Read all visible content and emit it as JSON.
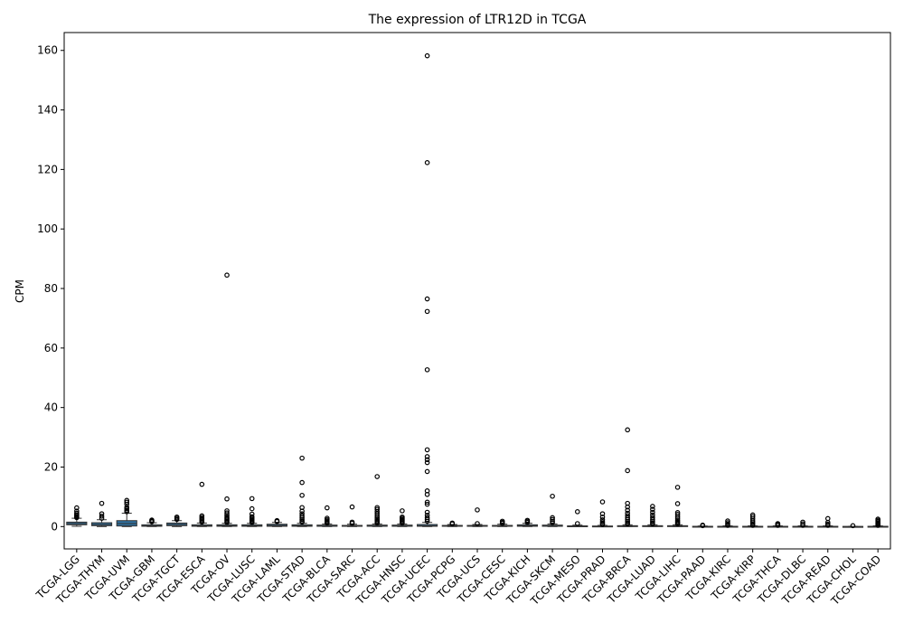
{
  "chart_data": {
    "type": "box",
    "title": "The expression of LTR12D in TCGA",
    "xlabel": "",
    "ylabel": "CPM",
    "ylim": [
      -7.5,
      166
    ],
    "yticks": [
      0,
      20,
      40,
      60,
      80,
      100,
      120,
      140,
      160
    ],
    "grid": false,
    "box_color": "#2e6f9e",
    "categories": [
      "TCGA-LGG",
      "TCGA-THYM",
      "TCGA-UVM",
      "TCGA-GBM",
      "TCGA-TGCT",
      "TCGA-ESCA",
      "TCGA-OV",
      "TCGA-LUSC",
      "TCGA-LAML",
      "TCGA-STAD",
      "TCGA-BLCA",
      "TCGA-SARC",
      "TCGA-ACC",
      "TCGA-HNSC",
      "TCGA-UCEC",
      "TCGA-PCPG",
      "TCGA-UCS",
      "TCGA-CESC",
      "TCGA-KICH",
      "TCGA-SKCM",
      "TCGA-MESO",
      "TCGA-PRAD",
      "TCGA-BRCA",
      "TCGA-LUAD",
      "TCGA-LIHC",
      "TCGA-PAAD",
      "TCGA-KIRC",
      "TCGA-KIRP",
      "TCGA-THCA",
      "TCGA-DLBC",
      "TCGA-READ",
      "TCGA-CHOL",
      "TCGA-COAD"
    ],
    "boxes": [
      {
        "min": 0.1,
        "q1": 0.6,
        "median": 1.0,
        "q3": 1.5,
        "max": 2.8,
        "outliers": [
          3.0,
          3.3,
          3.7,
          4.0,
          4.5,
          5.2,
          6.3
        ]
      },
      {
        "min": 0.0,
        "q1": 0.3,
        "median": 0.7,
        "q3": 1.3,
        "max": 2.3,
        "outliers": [
          2.8,
          3.5,
          4.3,
          7.8
        ]
      },
      {
        "min": 0.0,
        "q1": 0.2,
        "median": 1.0,
        "q3": 2.0,
        "max": 4.5,
        "outliers": [
          5.0,
          5.5,
          6.0,
          6.5,
          7.5,
          8.2,
          8.8
        ]
      },
      {
        "min": 0.0,
        "q1": 0.1,
        "median": 0.3,
        "q3": 0.6,
        "max": 1.3,
        "outliers": [
          1.6,
          1.9,
          2.2
        ]
      },
      {
        "min": 0.0,
        "q1": 0.3,
        "median": 0.7,
        "q3": 1.2,
        "max": 2.0,
        "outliers": [
          2.4,
          2.8,
          3.2
        ]
      },
      {
        "min": 0.0,
        "q1": 0.1,
        "median": 0.3,
        "q3": 0.6,
        "max": 1.2,
        "outliers": [
          1.5,
          1.9,
          2.3,
          2.7,
          3.1,
          3.6,
          14.2
        ]
      },
      {
        "min": 0.0,
        "q1": 0.1,
        "median": 0.3,
        "q3": 0.6,
        "max": 1.1,
        "outliers": [
          1.4,
          1.8,
          2.2,
          2.6,
          3.0,
          3.5,
          4.0,
          4.6,
          5.3,
          9.3,
          84.5
        ]
      },
      {
        "min": 0.0,
        "q1": 0.1,
        "median": 0.3,
        "q3": 0.6,
        "max": 1.1,
        "outliers": [
          1.4,
          1.7,
          2.0,
          2.4,
          2.8,
          3.3,
          4.2,
          6.0,
          9.4
        ]
      },
      {
        "min": 0.0,
        "q1": 0.1,
        "median": 0.4,
        "q3": 0.8,
        "max": 1.4,
        "outliers": [
          1.7,
          2.0
        ]
      },
      {
        "min": 0.0,
        "q1": 0.1,
        "median": 0.3,
        "q3": 0.6,
        "max": 1.1,
        "outliers": [
          1.5,
          1.9,
          2.4,
          3.0,
          3.6,
          4.3,
          5.2,
          6.4,
          10.5,
          14.8,
          23.0
        ]
      },
      {
        "min": 0.0,
        "q1": 0.1,
        "median": 0.2,
        "q3": 0.5,
        "max": 0.9,
        "outliers": [
          1.2,
          1.5,
          1.9,
          2.3,
          2.8,
          6.3
        ]
      },
      {
        "min": 0.0,
        "q1": 0.1,
        "median": 0.2,
        "q3": 0.4,
        "max": 0.8,
        "outliers": [
          1.1,
          1.5,
          6.6
        ]
      },
      {
        "min": 0.0,
        "q1": 0.1,
        "median": 0.2,
        "q3": 0.5,
        "max": 0.9,
        "outliers": [
          1.2,
          1.6,
          2.0,
          2.5,
          3.0,
          3.6,
          4.3,
          5.0,
          5.8,
          6.4,
          16.8
        ]
      },
      {
        "min": 0.0,
        "q1": 0.1,
        "median": 0.2,
        "q3": 0.5,
        "max": 0.9,
        "outliers": [
          1.2,
          1.6,
          2.0,
          2.4,
          2.8,
          3.2,
          5.3
        ]
      },
      {
        "min": 0.0,
        "q1": 0.1,
        "median": 0.3,
        "q3": 0.7,
        "max": 1.4,
        "outliers": [
          1.8,
          2.4,
          3.0,
          3.8,
          4.8,
          7.5,
          8.2,
          10.8,
          12.0,
          18.5,
          21.5,
          22.5,
          23.5,
          25.8,
          52.7,
          72.3,
          76.5,
          122.3,
          158.2
        ]
      },
      {
        "min": 0.0,
        "q1": 0.1,
        "median": 0.2,
        "q3": 0.4,
        "max": 0.7,
        "outliers": [
          0.9,
          1.2
        ]
      },
      {
        "min": 0.0,
        "q1": 0.1,
        "median": 0.2,
        "q3": 0.4,
        "max": 0.7,
        "outliers": [
          1.0,
          5.6
        ]
      },
      {
        "min": 0.0,
        "q1": 0.1,
        "median": 0.2,
        "q3": 0.4,
        "max": 0.8,
        "outliers": [
          1.1,
          1.4,
          1.8
        ]
      },
      {
        "min": 0.0,
        "q1": 0.1,
        "median": 0.3,
        "q3": 0.6,
        "max": 1.1,
        "outliers": [
          1.4,
          1.8,
          2.1
        ]
      },
      {
        "min": 0.0,
        "q1": 0.1,
        "median": 0.2,
        "q3": 0.5,
        "max": 0.9,
        "outliers": [
          1.3,
          1.8,
          2.4,
          3.0,
          10.2
        ]
      },
      {
        "min": 0.0,
        "q1": 0.05,
        "median": 0.1,
        "q3": 0.25,
        "max": 0.5,
        "outliers": [
          1.0,
          5.0
        ]
      },
      {
        "min": 0.0,
        "q1": 0.05,
        "median": 0.1,
        "q3": 0.2,
        "max": 0.4,
        "outliers": [
          0.7,
          1.1,
          1.6,
          2.3,
          3.2,
          4.3,
          8.3
        ]
      },
      {
        "min": 0.0,
        "q1": 0.05,
        "median": 0.1,
        "q3": 0.3,
        "max": 0.6,
        "outliers": [
          0.9,
          1.3,
          1.8,
          2.4,
          3.0,
          3.7,
          4.5,
          5.5,
          6.6,
          7.8,
          18.8,
          32.5
        ]
      },
      {
        "min": 0.0,
        "q1": 0.05,
        "median": 0.1,
        "q3": 0.3,
        "max": 0.6,
        "outliers": [
          0.9,
          1.3,
          1.8,
          2.4,
          3.1,
          3.9,
          4.8,
          5.8,
          6.8
        ]
      },
      {
        "min": 0.0,
        "q1": 0.05,
        "median": 0.1,
        "q3": 0.3,
        "max": 0.6,
        "outliers": [
          0.9,
          1.3,
          1.7,
          2.2,
          2.8,
          3.4,
          4.1,
          4.7,
          7.7,
          13.2
        ]
      },
      {
        "min": 0.0,
        "q1": 0.0,
        "median": 0.05,
        "q3": 0.1,
        "max": 0.2,
        "outliers": [
          0.3,
          0.5
        ]
      },
      {
        "min": 0.0,
        "q1": 0.0,
        "median": 0.05,
        "q3": 0.1,
        "max": 0.25,
        "outliers": [
          0.4,
          0.8,
          1.3,
          1.9
        ]
      },
      {
        "min": 0.0,
        "q1": 0.0,
        "median": 0.05,
        "q3": 0.1,
        "max": 0.25,
        "outliers": [
          0.4,
          0.8,
          1.3,
          1.9,
          2.6,
          3.3,
          3.9
        ]
      },
      {
        "min": 0.0,
        "q1": 0.0,
        "median": 0.05,
        "q3": 0.1,
        "max": 0.25,
        "outliers": [
          0.4,
          0.6,
          0.8,
          1.0
        ]
      },
      {
        "min": 0.0,
        "q1": 0.0,
        "median": 0.05,
        "q3": 0.1,
        "max": 0.25,
        "outliers": [
          0.4,
          0.9,
          1.5
        ]
      },
      {
        "min": 0.0,
        "q1": 0.0,
        "median": 0.05,
        "q3": 0.1,
        "max": 0.25,
        "outliers": [
          0.4,
          0.8,
          1.4,
          2.7
        ]
      },
      {
        "min": 0.0,
        "q1": 0.0,
        "median": 0.02,
        "q3": 0.05,
        "max": 0.1,
        "outliers": [
          0.3
        ]
      },
      {
        "min": 0.0,
        "q1": 0.0,
        "median": 0.05,
        "q3": 0.1,
        "max": 0.25,
        "outliers": [
          0.4,
          0.7,
          1.0,
          1.3,
          1.7,
          2.1,
          2.5
        ]
      }
    ]
  }
}
